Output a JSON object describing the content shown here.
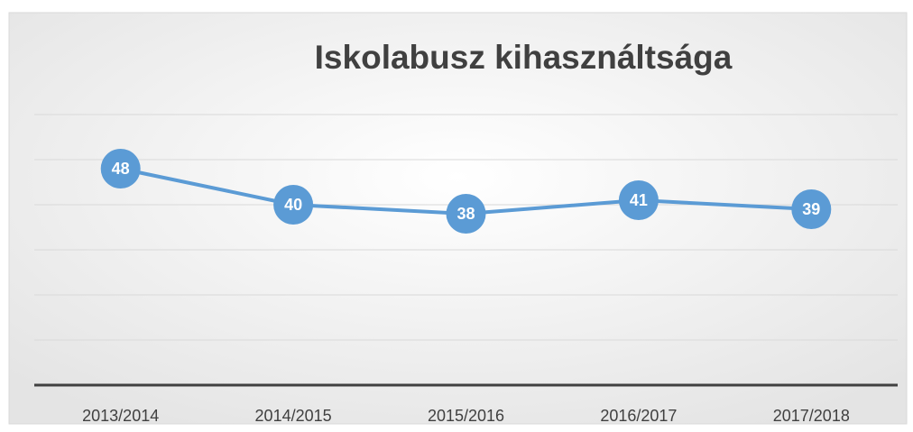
{
  "chart_data": {
    "type": "line",
    "title": "Iskolabusz kihasználtsága",
    "categories": [
      "2013/2014",
      "2014/2015",
      "2015/2016",
      "2016/2017",
      "2017/2018"
    ],
    "values": [
      48,
      40,
      38,
      41,
      39
    ],
    "color": "#5b9bd5",
    "ylim": [
      0,
      60
    ],
    "yticks": [
      0,
      10,
      20,
      30,
      40,
      50,
      60
    ],
    "grid": true
  }
}
